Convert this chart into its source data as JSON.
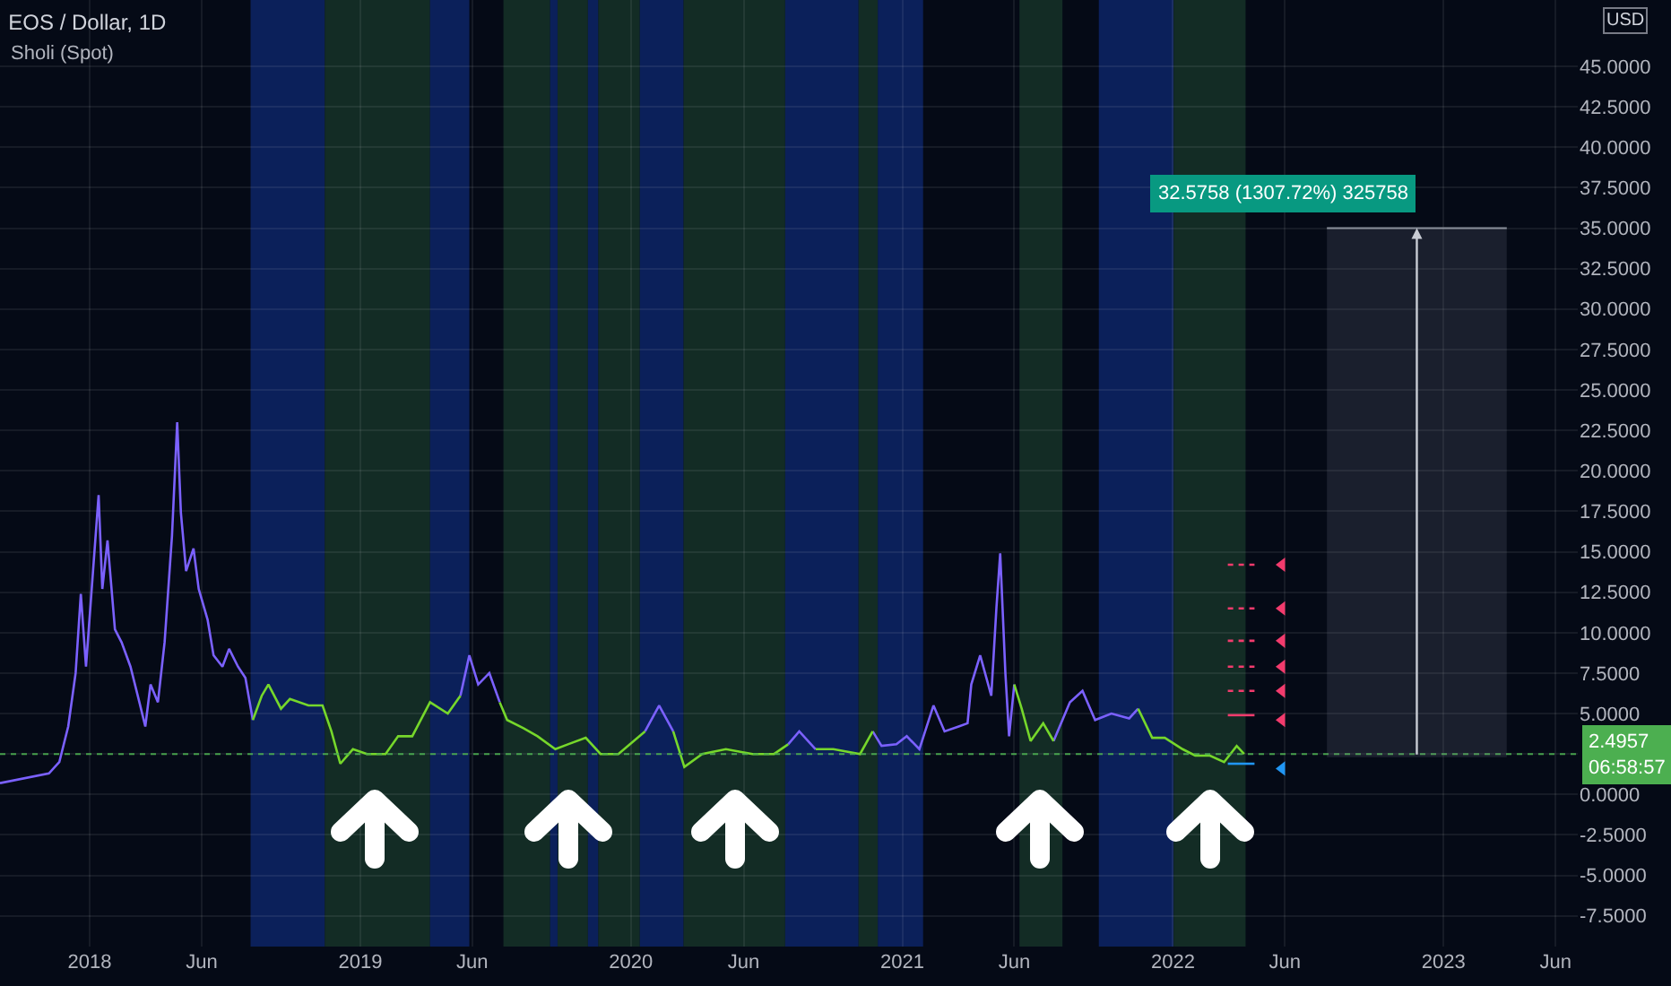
{
  "chart_data": {
    "type": "line",
    "title": "EOS / Dollar, 1D",
    "subtitle": "Sholi (Spot)",
    "x": [
      "2017-09-02",
      "2017-11-07",
      "2017-11-21",
      "2017-12-03",
      "2017-12-13",
      "2017-12-20",
      "2017-12-27",
      "2018-01-13",
      "2018-01-18",
      "2018-01-25",
      "2018-02-04",
      "2018-02-13",
      "2018-02-25",
      "2018-03-09",
      "2018-03-17",
      "2018-03-24",
      "2018-04-03",
      "2018-04-12",
      "2018-04-22",
      "2018-04-29",
      "2018-05-04",
      "2018-05-11",
      "2018-05-21",
      "2018-05-28",
      "2018-06-09",
      "2018-06-17",
      "2018-06-29",
      "2018-07-08",
      "2018-07-20",
      "2018-07-30",
      "2018-08-09",
      "2018-08-21",
      "2018-08-30",
      "2018-09-16",
      "2018-09-28",
      "2018-10-23",
      "2018-11-11",
      "2018-11-23",
      "2018-12-05",
      "2018-12-22",
      "2019-01-10",
      "2019-02-04",
      "2019-02-21",
      "2019-03-12",
      "2019-04-05",
      "2019-04-29",
      "2019-05-16",
      "2019-05-28",
      "2019-06-09",
      "2019-06-24",
      "2019-07-08",
      "2019-07-18",
      "2019-08-09",
      "2019-08-28",
      "2019-09-21",
      "2019-10-08",
      "2019-11-01",
      "2019-11-21",
      "2019-12-15",
      "2020-01-20",
      "2020-02-08",
      "2020-02-27",
      "2020-03-13",
      "2020-04-06",
      "2020-05-08",
      "2020-06-13",
      "2020-07-12",
      "2020-07-31",
      "2020-08-15",
      "2020-09-06",
      "2020-09-30",
      "2020-11-05",
      "2020-11-22",
      "2020-12-04",
      "2020-12-24",
      "2021-01-07",
      "2021-01-24",
      "2021-02-12",
      "2021-02-27",
      "2021-03-18",
      "2021-03-30",
      "2021-04-04",
      "2021-04-16",
      "2021-05-01",
      "2021-05-08",
      "2021-05-13",
      "2021-05-20",
      "2021-05-25",
      "2021-06-01",
      "2021-06-11",
      "2021-06-23",
      "2021-07-10",
      "2021-07-24",
      "2021-08-15",
      "2021-09-01",
      "2021-09-18",
      "2021-10-10",
      "2021-11-03",
      "2021-11-15",
      "2021-12-04",
      "2021-12-21",
      "2022-01-14",
      "2022-01-31",
      "2022-02-20",
      "2022-03-11",
      "2022-03-28",
      "2022-04-07"
    ],
    "series": [
      {
        "color": "#7b61ff",
        "values": [
          0.7,
          1.3,
          2.0,
          4.2,
          7.5,
          12.4,
          7.9,
          18.5,
          12.7,
          15.7,
          10.2,
          9.4,
          7.9,
          5.7,
          4.2,
          6.8,
          5.7,
          9.4,
          16.0,
          23.0,
          17.4,
          13.8,
          15.2,
          12.7,
          10.8,
          8.6,
          7.9,
          9.0,
          7.9,
          7.2,
          4.6,
          null,
          null,
          null,
          null,
          null,
          null,
          null,
          null,
          null,
          null,
          null,
          null,
          null,
          null,
          null,
          6.1,
          8.6,
          6.8,
          7.5,
          5.7,
          null,
          null,
          null,
          null,
          null,
          null,
          null,
          null,
          3.9,
          5.5,
          3.9,
          null,
          null,
          null,
          null,
          null,
          3.1,
          3.9,
          2.8,
          null,
          null,
          3.9,
          3.0,
          3.1,
          3.6,
          2.8,
          5.5,
          3.9,
          4.2,
          4.4,
          6.8,
          8.6,
          6.1,
          11.6,
          14.9,
          7.5,
          3.6,
          6.8,
          null,
          null,
          null,
          3.3,
          5.7,
          6.4,
          4.6,
          5.0,
          4.7,
          5.3,
          null,
          null,
          null,
          null,
          null,
          null,
          null,
          null
        ]
      },
      {
        "color": "#76d72b",
        "values": [
          null,
          null,
          null,
          null,
          null,
          null,
          null,
          null,
          null,
          null,
          null,
          null,
          null,
          null,
          null,
          null,
          null,
          null,
          null,
          null,
          null,
          null,
          null,
          null,
          null,
          null,
          null,
          null,
          null,
          null,
          4.6,
          6.1,
          6.8,
          5.3,
          5.9,
          5.5,
          5.5,
          3.9,
          1.9,
          2.8,
          2.5,
          2.5,
          3.6,
          3.6,
          5.7,
          5.0,
          6.1,
          null,
          null,
          null,
          5.7,
          4.6,
          4.1,
          3.6,
          2.8,
          3.1,
          3.5,
          2.5,
          2.5,
          3.9,
          null,
          3.9,
          1.7,
          2.5,
          2.8,
          2.5,
          2.5,
          3.1,
          null,
          2.8,
          2.8,
          2.5,
          3.9,
          null,
          null,
          null,
          null,
          null,
          null,
          null,
          null,
          null,
          null,
          null,
          null,
          null,
          null,
          null,
          6.8,
          5.3,
          3.3,
          4.4,
          3.3,
          null,
          null,
          null,
          null,
          null,
          5.3,
          3.5,
          3.5,
          2.8,
          2.4,
          2.4,
          2.0,
          3.0,
          2.5
        ]
      },
      {
        "color": "#f23b6d",
        "line_style": "dotted",
        "x": [
          "2022-03-16",
          "2022-04-21"
        ],
        "values": [
          14.2,
          14.2
        ]
      },
      {
        "color": "#f23b6d",
        "line_style": "dotted",
        "x": [
          "2022-03-16",
          "2022-04-21"
        ],
        "values": [
          11.5,
          11.5
        ]
      },
      {
        "color": "#f23b6d",
        "line_style": "dotted",
        "x": [
          "2022-03-16",
          "2022-04-21"
        ],
        "values": [
          9.5,
          9.5
        ]
      },
      {
        "color": "#f23b6d",
        "line_style": "dotted",
        "x": [
          "2022-03-16",
          "2022-04-21"
        ],
        "values": [
          7.9,
          7.9
        ]
      },
      {
        "color": "#f23b6d",
        "line_style": "dotted",
        "x": [
          "2022-03-16",
          "2022-04-21"
        ],
        "values": [
          6.4,
          6.4
        ]
      },
      {
        "color": "#f23b6d",
        "x": [
          "2022-03-16",
          "2022-04-21"
        ],
        "values": [
          4.9,
          4.9
        ]
      },
      {
        "color": "#2196f3",
        "x": [
          "2022-03-16",
          "2022-04-21"
        ],
        "values": [
          1.9,
          1.9
        ]
      },
      {
        "type": "scatter",
        "marker": "triangle",
        "color": "#f23b6d",
        "x": [
          "2022-05-28",
          "2022-05-28",
          "2022-05-28",
          "2022-05-28",
          "2022-05-28",
          "2022-05-28"
        ],
        "values": [
          14.2,
          11.5,
          9.5,
          7.9,
          6.4,
          4.6
        ]
      },
      {
        "type": "scatter",
        "marker": "triangle",
        "color": "#2196f3",
        "x": [
          "2022-05-28"
        ],
        "values": [
          1.6
        ]
      }
    ],
    "xlim": [
      "2017-09-02",
      "2023-07-01"
    ],
    "xticks": [
      {
        "value": "2018-01-01",
        "label": "2018"
      },
      {
        "value": "2018-06-01",
        "label": "Jun"
      },
      {
        "value": "2019-01-01",
        "label": "2019"
      },
      {
        "value": "2019-06-01",
        "label": "Jun"
      },
      {
        "value": "2020-01-01",
        "label": "2020"
      },
      {
        "value": "2020-06-01",
        "label": "Jun"
      },
      {
        "value": "2021-01-01",
        "label": "2021"
      },
      {
        "value": "2021-06-01",
        "label": "Jun"
      },
      {
        "value": "2022-01-01",
        "label": "2022"
      },
      {
        "value": "2022-06-01",
        "label": "Jun"
      },
      {
        "value": "2023-01-01",
        "label": "2023"
      },
      {
        "value": "2023-06-01",
        "label": "Jun"
      }
    ],
    "ylim": [
      -9.4,
      49.1
    ],
    "yticks": [
      {
        "value": -7.5,
        "label": "-7.5000"
      },
      {
        "value": -5,
        "label": "-5.0000"
      },
      {
        "value": -2.5,
        "label": "-2.5000"
      },
      {
        "value": 0,
        "label": "0.0000"
      },
      {
        "value": 2.5,
        "label": null
      },
      {
        "value": 5,
        "label": "5.0000"
      },
      {
        "value": 7.5,
        "label": "7.5000"
      },
      {
        "value": 10,
        "label": "10.0000"
      },
      {
        "value": 12.5,
        "label": "12.5000"
      },
      {
        "value": 15,
        "label": "15.0000"
      },
      {
        "value": 17.5,
        "label": "17.5000"
      },
      {
        "value": 20,
        "label": "20.0000"
      },
      {
        "value": 22.5,
        "label": "22.5000"
      },
      {
        "value": 25,
        "label": "25.0000"
      },
      {
        "value": 27.5,
        "label": "27.5000"
      },
      {
        "value": 30,
        "label": "30.0000"
      },
      {
        "value": 32.5,
        "label": "32.5000"
      },
      {
        "value": 35,
        "label": "35.0000"
      },
      {
        "value": 37.5,
        "label": "37.5000"
      },
      {
        "value": 40,
        "label": "40.0000"
      },
      {
        "value": 42.5,
        "label": "42.5000"
      },
      {
        "value": 45,
        "label": "45.0000"
      }
    ],
    "grid": true,
    "ref_lines": [
      {
        "axis": "y",
        "value": 2.4957,
        "label": "2.4957\n06:58:57",
        "color": "#4caf50",
        "line_style": "dotted"
      }
    ],
    "bands": [
      {
        "axis": "x",
        "from": "2018-08-06",
        "to": "2018-11-14",
        "color": "#0d2466"
      },
      {
        "axis": "x",
        "from": "2018-11-14",
        "to": "2019-04-05",
        "color": "#163328"
      },
      {
        "axis": "x",
        "from": "2019-04-05",
        "to": "2019-05-28",
        "color": "#0d2466"
      },
      {
        "axis": "x",
        "from": "2019-07-13",
        "to": "2019-09-14",
        "color": "#163328"
      },
      {
        "axis": "x",
        "from": "2019-09-14",
        "to": "2019-09-24",
        "color": "#0d2466"
      },
      {
        "axis": "x",
        "from": "2019-09-24",
        "to": "2019-11-04",
        "color": "#163328"
      },
      {
        "axis": "x",
        "from": "2019-11-04",
        "to": "2019-11-18",
        "color": "#0d2466"
      },
      {
        "axis": "x",
        "from": "2019-11-18",
        "to": "2020-01-13",
        "color": "#163328"
      },
      {
        "axis": "x",
        "from": "2020-01-13",
        "to": "2020-03-12",
        "color": "#0d2466"
      },
      {
        "axis": "x",
        "from": "2020-03-12",
        "to": "2020-07-27",
        "color": "#163328"
      },
      {
        "axis": "x",
        "from": "2020-07-27",
        "to": "2020-11-03",
        "color": "#0d2466"
      },
      {
        "axis": "x",
        "from": "2020-11-03",
        "to": "2020-11-29",
        "color": "#163328"
      },
      {
        "axis": "x",
        "from": "2020-11-29",
        "to": "2021-01-29",
        "color": "#0d2466"
      },
      {
        "axis": "x",
        "from": "2021-06-08",
        "to": "2021-08-05",
        "color": "#163328"
      },
      {
        "axis": "x",
        "from": "2021-09-23",
        "to": "2022-01-02",
        "color": "#0d2466"
      },
      {
        "axis": "x",
        "from": "2022-01-02",
        "to": "2022-04-09",
        "color": "#163328"
      }
    ],
    "annotations": [
      "USD",
      "32.5758 (1307.72%) 325758"
    ]
  }
}
